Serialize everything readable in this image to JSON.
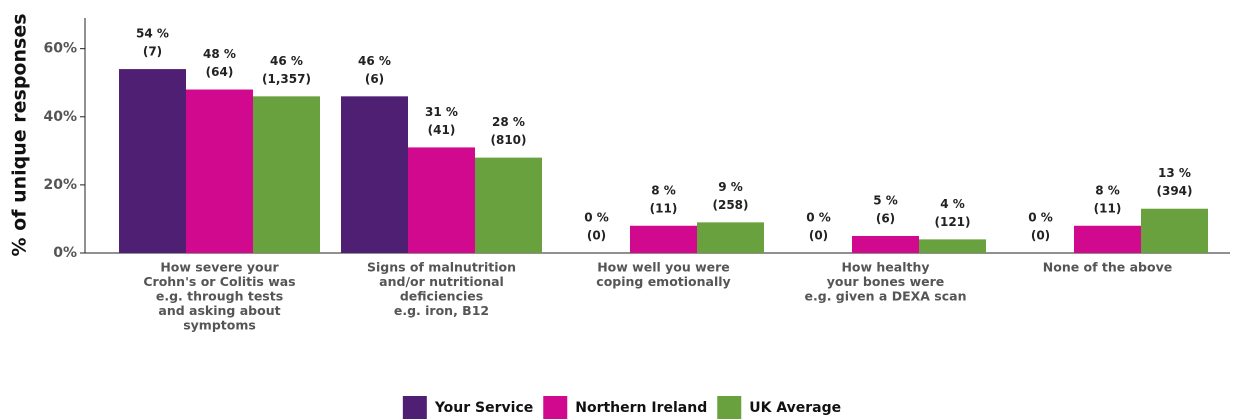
{
  "chart_data": {
    "type": "bar",
    "y_label": "% of unique responses",
    "categories": [
      [
        "How severe your",
        "Crohn's or Colitis was",
        "e.g. through tests",
        "and asking about",
        "symptoms"
      ],
      [
        "Signs of malnutrition",
        "and/or nutritional",
        "deficiencies",
        "e.g. iron, B12"
      ],
      [
        "How well you were",
        "coping emotionally"
      ],
      [
        "How healthy",
        "your bones were",
        "e.g. given a DEXA scan"
      ],
      [
        "None of the above"
      ]
    ],
    "series": [
      {
        "name": "Your Service",
        "color": "#4f1f73",
        "values": [
          54,
          46,
          0,
          0,
          0
        ],
        "value_labels": [
          [
            "54 %",
            "(7)"
          ],
          [
            "46 %",
            "(6)"
          ],
          [
            "0 %",
            "(0)"
          ],
          [
            "0 %",
            "(0)"
          ],
          [
            "0 %",
            "(0)"
          ]
        ]
      },
      {
        "name": "Northern Ireland",
        "color": "#d0098f",
        "values": [
          48,
          31,
          8,
          5,
          8
        ],
        "value_labels": [
          [
            "48 %",
            "(64)"
          ],
          [
            "31 %",
            "(41)"
          ],
          [
            "8 %",
            "(11)"
          ],
          [
            "5 %",
            "(6)"
          ],
          [
            "8 %",
            "(11)"
          ]
        ]
      },
      {
        "name": "UK Average",
        "color": "#6aa13f",
        "values": [
          46,
          28,
          9,
          4,
          13
        ],
        "value_labels": [
          [
            "46 %",
            "(1,357)"
          ],
          [
            "28 %",
            "(810)"
          ],
          [
            "9 %",
            "(258)"
          ],
          [
            "4 %",
            "(121)"
          ],
          [
            "13 %",
            "(394)"
          ]
        ]
      }
    ],
    "ylim": [
      0,
      69
    ],
    "yticks": [
      {
        "value": 0,
        "label": "0%"
      },
      {
        "value": 20,
        "label": "20%"
      },
      {
        "value": 40,
        "label": "40%"
      },
      {
        "value": 60,
        "label": "60%"
      }
    ],
    "legend": "bottom"
  }
}
